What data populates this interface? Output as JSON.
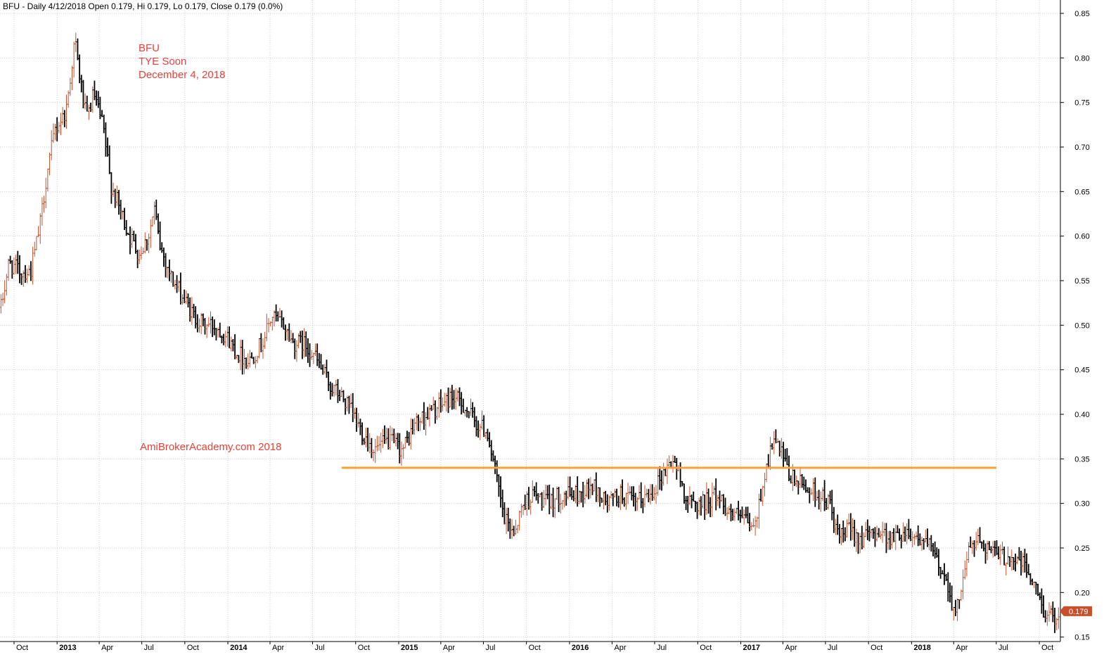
{
  "chart_data": {
    "type": "ohlc",
    "header": "BFU - Daily 4/12/2018 Open 0.179, Hi 0.179, Lo 0.179, Close 0.179 (0.0%)",
    "annotations": [
      "BFU",
      "TYE Soon",
      "December 4, 2018"
    ],
    "watermark": "AmiBrokerAcademy.com  2018",
    "last_price": "0.179",
    "ylim": [
      0.145,
      0.865
    ],
    "y_ticks": [
      0.15,
      0.2,
      0.25,
      0.3,
      0.35,
      0.4,
      0.45,
      0.5,
      0.55,
      0.6,
      0.65,
      0.7,
      0.75,
      0.8,
      0.85
    ],
    "y_tick_labels": [
      "0.15",
      "0.20",
      "0.25",
      "0.30",
      "0.35",
      "0.40",
      "0.45",
      "0.50",
      "0.55",
      "0.60",
      "0.65",
      "0.70",
      "0.75",
      "0.80",
      "0.85"
    ],
    "x_range": [
      "2012-09-01",
      "2018-11-15"
    ],
    "x_ticks": [
      {
        "date": "2012-10-01",
        "label": "Oct",
        "year": false
      },
      {
        "date": "2013-01-01",
        "label": "2013",
        "year": true
      },
      {
        "date": "2013-04-01",
        "label": "Apr",
        "year": false
      },
      {
        "date": "2013-07-01",
        "label": "Jul",
        "year": false
      },
      {
        "date": "2013-10-01",
        "label": "Oct",
        "year": false
      },
      {
        "date": "2014-01-01",
        "label": "2014",
        "year": true
      },
      {
        "date": "2014-04-01",
        "label": "Apr",
        "year": false
      },
      {
        "date": "2014-07-01",
        "label": "Jul",
        "year": false
      },
      {
        "date": "2014-10-01",
        "label": "Oct",
        "year": false
      },
      {
        "date": "2015-01-01",
        "label": "2015",
        "year": true
      },
      {
        "date": "2015-04-01",
        "label": "Apr",
        "year": false
      },
      {
        "date": "2015-07-01",
        "label": "Jul",
        "year": false
      },
      {
        "date": "2015-10-01",
        "label": "Oct",
        "year": false
      },
      {
        "date": "2016-01-01",
        "label": "2016",
        "year": true
      },
      {
        "date": "2016-04-01",
        "label": "Apr",
        "year": false
      },
      {
        "date": "2016-07-01",
        "label": "Jul",
        "year": false
      },
      {
        "date": "2016-10-01",
        "label": "Oct",
        "year": false
      },
      {
        "date": "2017-01-01",
        "label": "2017",
        "year": true
      },
      {
        "date": "2017-04-01",
        "label": "Apr",
        "year": false
      },
      {
        "date": "2017-07-01",
        "label": "Jul",
        "year": false
      },
      {
        "date": "2017-10-01",
        "label": "Oct",
        "year": false
      },
      {
        "date": "2018-01-01",
        "label": "2018",
        "year": true
      },
      {
        "date": "2018-04-01",
        "label": "Apr",
        "year": false
      },
      {
        "date": "2018-07-01",
        "label": "Jul",
        "year": false
      },
      {
        "date": "2018-10-01",
        "label": "Oct",
        "year": false
      }
    ],
    "support_line": {
      "value": 0.34,
      "from": "2014-09-01",
      "to": "2018-07-01",
      "color": "#f7a13a"
    },
    "grid": true,
    "colors": {
      "up": "#c8502a",
      "down": "#000000",
      "support": "#f7a13a",
      "annotation": "#e8413a",
      "last_price_badge": "#c8502a"
    },
    "price_path": [
      [
        "2012-09-03",
        0.52
      ],
      [
        "2012-09-20",
        0.57
      ],
      [
        "2012-10-15",
        0.56
      ],
      [
        "2012-11-05",
        0.56
      ],
      [
        "2012-11-25",
        0.61
      ],
      [
        "2012-12-10",
        0.67
      ],
      [
        "2012-12-28",
        0.72
      ],
      [
        "2013-01-20",
        0.74
      ],
      [
        "2013-02-08",
        0.82
      ],
      [
        "2013-02-18",
        0.78
      ],
      [
        "2013-03-05",
        0.73
      ],
      [
        "2013-03-20",
        0.76
      ],
      [
        "2013-04-10",
        0.72
      ],
      [
        "2013-04-25",
        0.66
      ],
      [
        "2013-05-15",
        0.63
      ],
      [
        "2013-06-05",
        0.6
      ],
      [
        "2013-06-25",
        0.58
      ],
      [
        "2013-07-15",
        0.6
      ],
      [
        "2013-07-28",
        0.63
      ],
      [
        "2013-08-08",
        0.59
      ],
      [
        "2013-09-05",
        0.55
      ],
      [
        "2013-09-28",
        0.53
      ],
      [
        "2013-10-20",
        0.51
      ],
      [
        "2013-11-10",
        0.5
      ],
      [
        "2013-12-05",
        0.5
      ],
      [
        "2013-12-25",
        0.49
      ],
      [
        "2014-01-20",
        0.47
      ],
      [
        "2014-02-15",
        0.46
      ],
      [
        "2014-03-15",
        0.48
      ],
      [
        "2014-04-05",
        0.51
      ],
      [
        "2014-04-30",
        0.5
      ],
      [
        "2014-05-20",
        0.48
      ],
      [
        "2014-06-10",
        0.48
      ],
      [
        "2014-07-01",
        0.47
      ],
      [
        "2014-07-20",
        0.45
      ],
      [
        "2014-08-10",
        0.43
      ],
      [
        "2014-09-01",
        0.42
      ],
      [
        "2014-09-25",
        0.4
      ],
      [
        "2014-10-15",
        0.38
      ],
      [
        "2014-11-10",
        0.36
      ],
      [
        "2014-12-10",
        0.37
      ],
      [
        "2015-01-10",
        0.36
      ],
      [
        "2015-02-05",
        0.39
      ],
      [
        "2015-03-05",
        0.4
      ],
      [
        "2015-04-01",
        0.41
      ],
      [
        "2015-04-25",
        0.42
      ],
      [
        "2015-05-20",
        0.41
      ],
      [
        "2015-06-15",
        0.39
      ],
      [
        "2015-07-10",
        0.38
      ],
      [
        "2015-07-28",
        0.33
      ],
      [
        "2015-08-15",
        0.28
      ],
      [
        "2015-09-05",
        0.27
      ],
      [
        "2015-09-25",
        0.3
      ],
      [
        "2015-10-15",
        0.31
      ],
      [
        "2015-11-15",
        0.3
      ],
      [
        "2015-12-15",
        0.31
      ],
      [
        "2016-01-20",
        0.31
      ],
      [
        "2016-02-20",
        0.32
      ],
      [
        "2016-03-20",
        0.3
      ],
      [
        "2016-04-20",
        0.31
      ],
      [
        "2016-05-20",
        0.3
      ],
      [
        "2016-06-20",
        0.31
      ],
      [
        "2016-07-15",
        0.33
      ],
      [
        "2016-08-10",
        0.35
      ],
      [
        "2016-09-10",
        0.3
      ],
      [
        "2016-10-10",
        0.3
      ],
      [
        "2016-11-10",
        0.31
      ],
      [
        "2016-12-10",
        0.29
      ],
      [
        "2017-01-10",
        0.28
      ],
      [
        "2017-01-30",
        0.27
      ],
      [
        "2017-02-20",
        0.33
      ],
      [
        "2017-03-10",
        0.37
      ],
      [
        "2017-03-25",
        0.36
      ],
      [
        "2017-04-15",
        0.33
      ],
      [
        "2017-05-15",
        0.32
      ],
      [
        "2017-06-15",
        0.31
      ],
      [
        "2017-07-10",
        0.3
      ],
      [
        "2017-07-28",
        0.26
      ],
      [
        "2017-08-20",
        0.27
      ],
      [
        "2017-09-20",
        0.26
      ],
      [
        "2017-10-20",
        0.27
      ],
      [
        "2017-11-20",
        0.26
      ],
      [
        "2017-12-20",
        0.27
      ],
      [
        "2018-01-20",
        0.26
      ],
      [
        "2018-02-10",
        0.25
      ],
      [
        "2018-03-01",
        0.23
      ],
      [
        "2018-03-20",
        0.21
      ],
      [
        "2018-04-05",
        0.17
      ],
      [
        "2018-04-20",
        0.22
      ],
      [
        "2018-05-05",
        0.25
      ],
      [
        "2018-05-25",
        0.26
      ],
      [
        "2018-06-15",
        0.25
      ],
      [
        "2018-07-05",
        0.24
      ],
      [
        "2018-08-01",
        0.24
      ],
      [
        "2018-09-01",
        0.23
      ],
      [
        "2018-09-25",
        0.2
      ],
      [
        "2018-10-15",
        0.176
      ],
      [
        "2018-11-01",
        0.172
      ],
      [
        "2018-11-12",
        0.179
      ]
    ]
  }
}
